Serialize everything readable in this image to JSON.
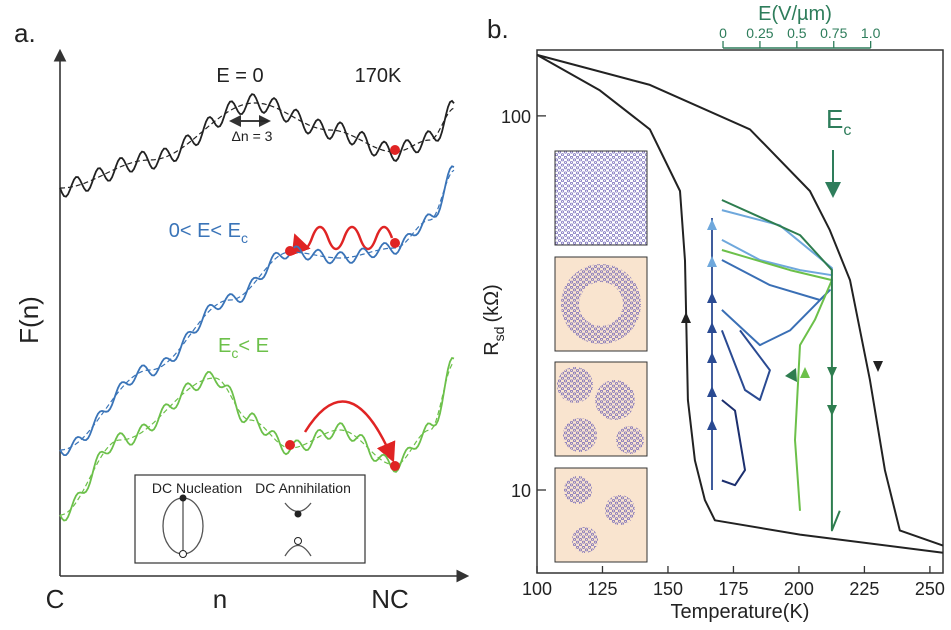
{
  "panel_a": {
    "label": "a.",
    "ylabel": "F(n)",
    "xlabels": [
      "C",
      "n",
      "NC"
    ],
    "e0": "E = 0",
    "temp": "170K",
    "dn": "Δn = 3",
    "mid": {
      "pre": "0< E< E",
      "sub": "c"
    },
    "high": {
      "main": "E",
      "sub": "c",
      "post": "< E"
    },
    "inset": [
      "DC Nucleation",
      "DC Annihilation"
    ]
  },
  "chart_data": {
    "type": "line",
    "panel_label": "b.",
    "xlabel": "Temperature(K)",
    "ylabel": {
      "main": "R",
      "sub": "sd",
      "unit": "(kΩ)"
    },
    "xlim": [
      100,
      255
    ],
    "xticks": [
      100,
      125,
      150,
      175,
      200,
      225,
      250
    ],
    "ylim": [
      6,
      150
    ],
    "yticks": [
      10,
      100
    ],
    "ylog": true,
    "x2label": "E(V/µm)",
    "x2lim": [
      -1.26,
      1.49
    ],
    "x2ticks": [
      0,
      0.25,
      0.5,
      0.75,
      {
        "value": 1,
        "label": "1.0"
      }
    ],
    "x2color": "#2e7d5b",
    "annotation": {
      "main": "E",
      "sub": "c",
      "color": "#2e7d5b"
    },
    "series": [
      {
        "color": "#222222",
        "x": [
          100,
          124.0,
          143.1,
          154.6,
          156.5,
          157.6,
          160.3,
          164.1,
          167.9,
          200.4,
          255
        ],
        "values": [
          145.5,
          117,
          92,
          63,
          41,
          17.4,
          12.0,
          9.4,
          8.3,
          7.6,
          6.8
        ]
      },
      {
        "color": "#222222",
        "x": [
          100,
          143.1,
          181.3,
          204.2,
          211.8,
          219.5,
          227.1,
          232.8,
          238.5,
          255
        ],
        "values": [
          145.5,
          121,
          92,
          63,
          49.5,
          36.4,
          19.7,
          11.3,
          7.8,
          7.1
        ]
      },
      {
        "color": "#6fa8dc",
        "x": [
          170.6,
          192.7,
          212.6,
          212.6,
          200.4,
          185.1,
          170.6
        ],
        "values": [
          56,
          51,
          39.2,
          37.5,
          38.7,
          41.2,
          46.6
        ]
      },
      {
        "color": "#3a6fb5",
        "x": [
          170.6,
          188.9,
          208.0,
          211.8,
          196.6,
          185.1,
          170.6
        ],
        "values": [
          41.2,
          35.3,
          32.2,
          34.2,
          26.7,
          24.4,
          30.3
        ]
      },
      {
        "color": "#2a4a92",
        "x": [
          170.6,
          179.4,
          185.1,
          188.9,
          177.5
        ],
        "values": [
          26.7,
          18.5,
          17.4,
          20.9,
          26.7
        ]
      },
      {
        "color": "#1c2f6e",
        "x": [
          170.6,
          175.6,
          179.4,
          175.6,
          170.6
        ],
        "values": [
          17.4,
          16.3,
          11.3,
          10.3,
          10.6
        ]
      },
      {
        "color": "#6cc04a",
        "x": [
          170.6,
          196.6,
          212.6,
          206.1,
          200.4,
          198.5,
          200.4
        ],
        "values": [
          43.8,
          38.7,
          36.4,
          28.5,
          24.4,
          13.6,
          8.8
        ]
      },
      {
        "color": "#2e7d4f",
        "x": [
          170.6,
          200.4,
          212.6,
          212.6,
          215.6
        ],
        "values": [
          59.6,
          48,
          38.7,
          7.8,
          8.8
        ]
      }
    ]
  }
}
